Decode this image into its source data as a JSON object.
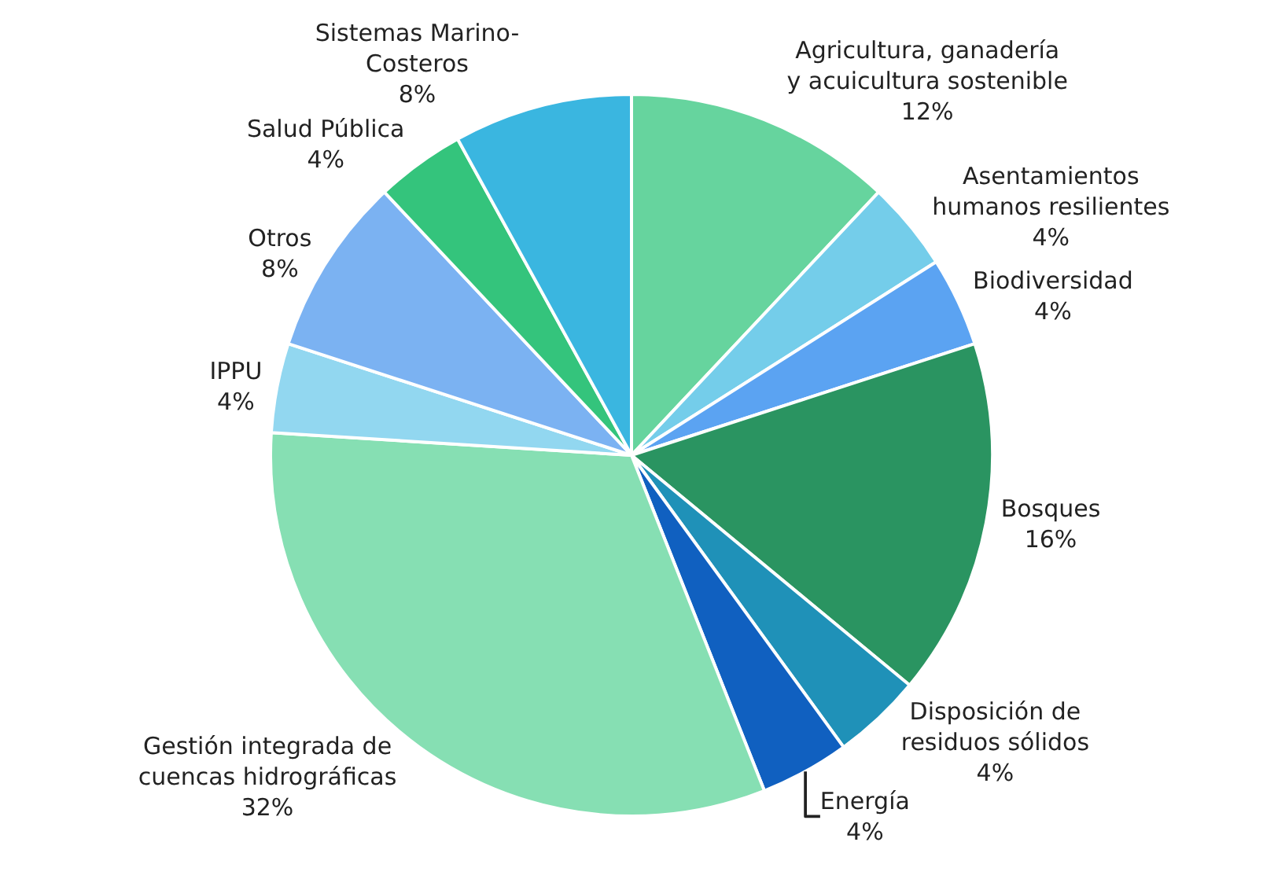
{
  "chart_data": {
    "type": "pie",
    "categories": [
      "Agricultura, ganadería\ny acuicultura sostenible",
      "Asentamientos\nhumanos resilientes",
      "Biodiversidad",
      "Bosques",
      "Disposición de\nresiduos sólidos",
      "Energía",
      "Gestión integrada de\ncuencas hidrográficas",
      "IPPU",
      "Otros",
      "Salud Pública",
      "Sistemas Marino-\nCosteros"
    ],
    "values": [
      12,
      4,
      4,
      16,
      4,
      4,
      32,
      4,
      8,
      4,
      8
    ],
    "value_labels": [
      "12%",
      "4%",
      "4%",
      "16%",
      "4%",
      "4%",
      "32%",
      "4%",
      "8%",
      "4%",
      "8%"
    ],
    "colors": [
      "#66d49e",
      "#74cdea",
      "#5ba3f2",
      "#2a9461",
      "#1f91b8",
      "#1060c0",
      "#86dfb3",
      "#92d7f0",
      "#7bb2f2",
      "#34c47c",
      "#3ab6e0"
    ],
    "legend": false
  }
}
